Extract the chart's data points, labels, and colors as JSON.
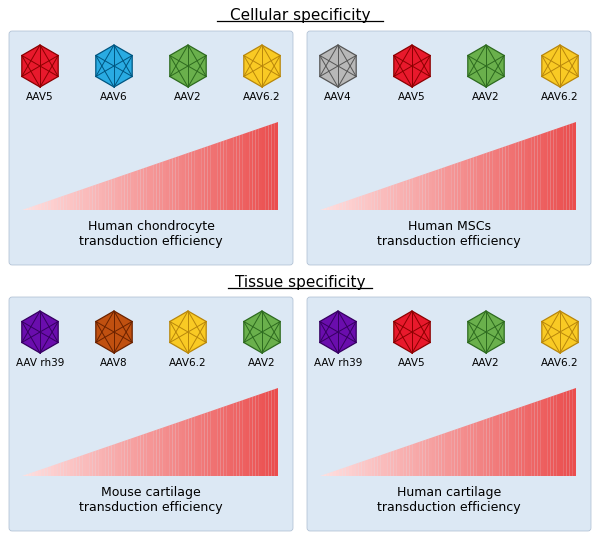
{
  "title_cellular": "Cellular specificity",
  "title_tissue": "Tissue specificity",
  "bg_panel": "#dce8f4",
  "fig_w": 6.0,
  "fig_h": 5.4,
  "panels": [
    {
      "labels": [
        "AAV5",
        "AAV6",
        "AAV2",
        "AAV6.2"
      ],
      "fill_colors": [
        "#e8192c",
        "#29abe2",
        "#6ab04c",
        "#f9ca24"
      ],
      "edge_colors": [
        "#8b0000",
        "#005580",
        "#2d6a1f",
        "#b8860b"
      ],
      "caption": "Human chondrocyte\ntransduction efficiency"
    },
    {
      "labels": [
        "AAV4",
        "AAV5",
        "AAV2",
        "AAV6.2"
      ],
      "fill_colors": [
        "#b8b8b8",
        "#e8192c",
        "#6ab04c",
        "#f9ca24"
      ],
      "edge_colors": [
        "#555555",
        "#8b0000",
        "#2d6a1f",
        "#b8860b"
      ],
      "caption": "Human MSCs\ntransduction efficiency"
    },
    {
      "labels": [
        "AAV rh39",
        "AAV8",
        "AAV6.2",
        "AAV2"
      ],
      "fill_colors": [
        "#6a0dad",
        "#c05010",
        "#f9ca24",
        "#6ab04c"
      ],
      "edge_colors": [
        "#350060",
        "#6a2200",
        "#b8860b",
        "#2d6a1f"
      ],
      "caption": "Mouse cartilage\ntransduction efficiency"
    },
    {
      "labels": [
        "AAV rh39",
        "AAV5",
        "AAV2",
        "AAV6.2"
      ],
      "fill_colors": [
        "#6a0dad",
        "#e8192c",
        "#6ab04c",
        "#f9ca24"
      ],
      "edge_colors": [
        "#350060",
        "#8b0000",
        "#2d6a1f",
        "#b8860b"
      ],
      "caption": "Human cartilage\ntransduction efficiency"
    }
  ]
}
